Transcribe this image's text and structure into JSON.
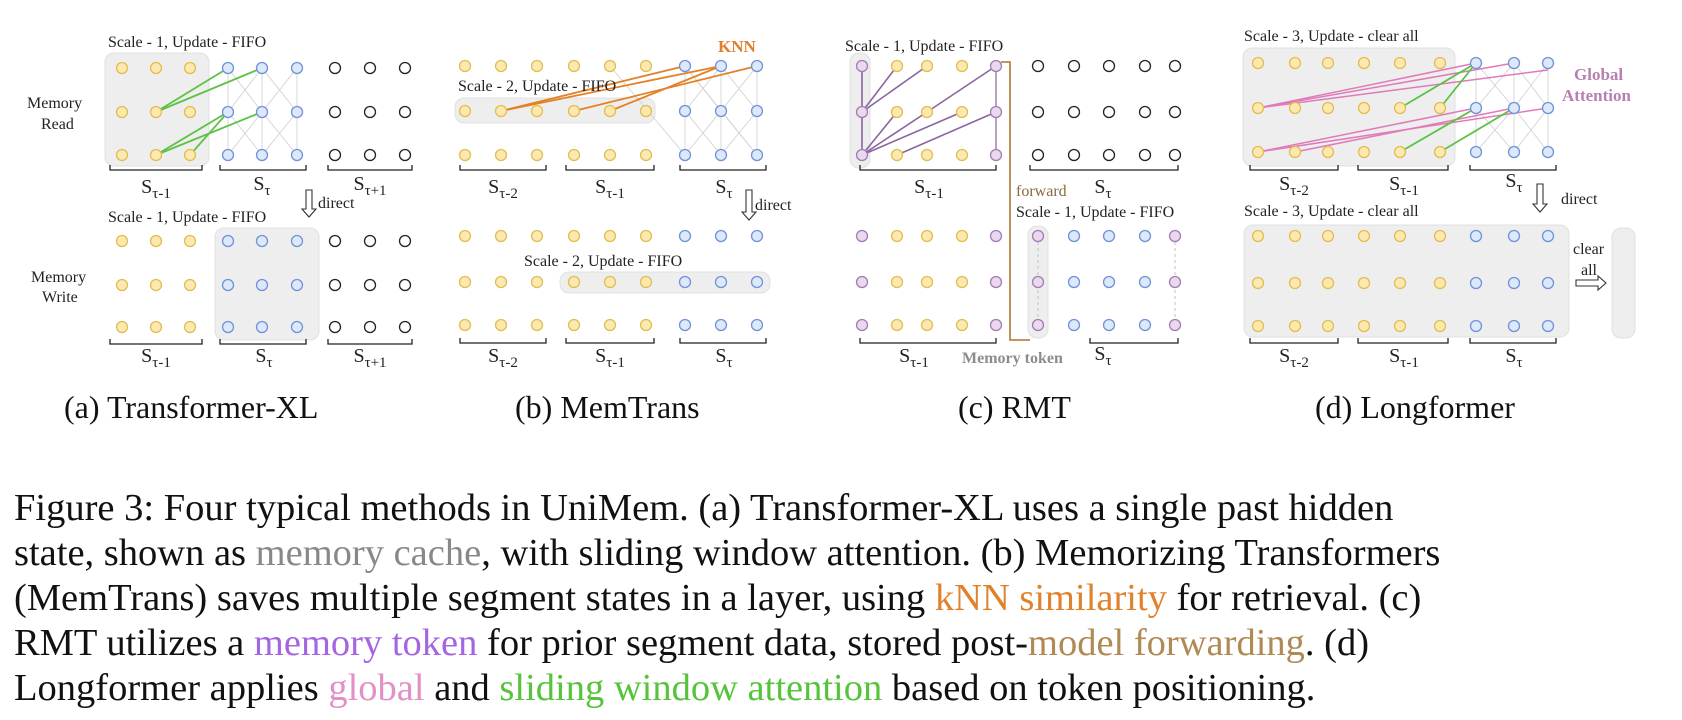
{
  "panels": {
    "a": {
      "name": "(a)  Transformer-XL",
      "read_label": [
        "Memory",
        "Read"
      ],
      "write_label": [
        "Memory",
        "Write"
      ],
      "top_box_label": "Scale - 1, Update - FIFO",
      "bottom_box_label": "Scale - 1, Update - FIFO",
      "arrow_label": "direct",
      "segments": [
        {
          "base": "S",
          "sub": "τ-1"
        },
        {
          "base": "S",
          "sub": "τ"
        },
        {
          "base": "S",
          "sub": "τ+1"
        }
      ]
    },
    "b": {
      "name": "(b)  MemTrans",
      "top_box_label": "Scale - 2, Update - FIFO",
      "bottom_box_label": "Scale - 2, Update - FIFO",
      "knn_label": "KNN",
      "arrow_label": "direct",
      "segments": [
        {
          "base": "S",
          "sub": "τ-2"
        },
        {
          "base": "S",
          "sub": "τ-1"
        },
        {
          "base": "S",
          "sub": "τ"
        }
      ]
    },
    "c": {
      "name": "(c)  RMT",
      "top_box_label": "Scale - 1, Update - FIFO",
      "bottom_box_label": "Scale - 1, Update - FIFO",
      "forward_label": "forward",
      "memory_token_label": "Memory token",
      "segments": [
        {
          "base": "S",
          "sub": "τ-1"
        },
        {
          "base": "S",
          "sub": "τ"
        }
      ]
    },
    "d": {
      "name": "(d)  Longformer",
      "top_box_label": "Scale - 3, Update - clear all",
      "bottom_box_label": "Scale - 3, Update - clear all",
      "global_label": [
        "Global",
        "Attention"
      ],
      "arrow_label": "direct",
      "clear_label": [
        "clear",
        "all"
      ],
      "segments": [
        {
          "base": "S",
          "sub": "τ-2"
        },
        {
          "base": "S",
          "sub": "τ-1"
        },
        {
          "base": "S",
          "sub": "τ"
        }
      ]
    }
  },
  "caption": {
    "l1a": "Figure 3: Four typical methods in UniMem. (a) Transformer-XL uses a single past hidden",
    "l2a": "state, shown as ",
    "l2b": "memory cache",
    "l2c": ", with sliding window attention. (b) Memorizing Transformers",
    "l3a": "(MemTrans) saves multiple segment states in a layer, using ",
    "l3b": "kNN similarity",
    "l3c": " for retrieval. (c)",
    "l4a": "RMT utilizes a ",
    "l4b": "memory token",
    "l4c": " for prior segment data, stored post-",
    "l4d": "model forwarding",
    "l4e": ". (d)",
    "l5a": "Longformer applies ",
    "l5b": "global",
    "l5c": " and ",
    "l5d": "sliding window attention",
    "l5e": " based on token positioning."
  },
  "colors": {
    "yellow_fill": "#fbe9b0",
    "yellow_stroke": "#e3bd52",
    "blue_fill": "#dde8fb",
    "blue_stroke": "#6f93d6",
    "purple_fill": "#ead8ee",
    "purple_stroke": "#a27db4",
    "green": "#5cc243",
    "orange": "#e38127",
    "violet": "#8a659e",
    "pink": "#e07ab8",
    "box_fill": "#eeeeee",
    "forward_line": "#b8864a"
  }
}
